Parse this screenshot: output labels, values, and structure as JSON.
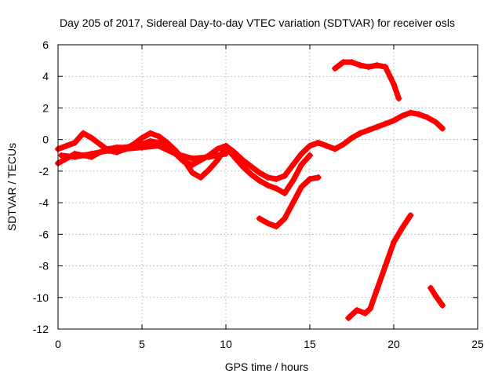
{
  "chart_data": {
    "type": "scatter",
    "title": "Day 205 of 2017, Sidereal Day-to-day VTEC variation (SDTVAR) for receiver osls",
    "xlabel": "GPS time / hours",
    "ylabel": "SDTVAR / TECUs",
    "xlim": [
      0,
      25
    ],
    "ylim": [
      -12,
      6
    ],
    "xticks": [
      "0",
      "5",
      "10",
      "15",
      "20",
      "25"
    ],
    "yticks": [
      "6",
      "4",
      "2",
      "0",
      "-2",
      "-4",
      "-6",
      "-8",
      "-10",
      "-12"
    ],
    "grid": true,
    "legend": "none",
    "marker": "plus",
    "color": "#ff0000",
    "series": [
      {
        "x": [
          0,
          0.5,
          1.0,
          1.5,
          2.0,
          2.5,
          3.0,
          3.5,
          4.0,
          4.5,
          5.0,
          5.5,
          6.0,
          6.5,
          7.0,
          7.5,
          8.0,
          8.5,
          9.0,
          9.5,
          10.0,
          10.5,
          11.0,
          11.5,
          12.0,
          12.5,
          13.0,
          13.5,
          14.0,
          14.5,
          15.0,
          15.5,
          16.0,
          16.5,
          17.0,
          17.5,
          18.0,
          18.5,
          19.0,
          19.5,
          20.0,
          20.5,
          21.0,
          21.5,
          22.0,
          22.5,
          22.9
        ],
        "y": [
          -1.5,
          -1.2,
          -0.9,
          -1.0,
          -1.1,
          -0.8,
          -0.6,
          -0.5,
          -0.5,
          -0.4,
          -0.3,
          -0.1,
          -0.2,
          -0.5,
          -0.9,
          -1.4,
          -1.6,
          -1.3,
          -1.0,
          -0.6,
          -0.4,
          -0.8,
          -1.3,
          -1.7,
          -2.1,
          -2.4,
          -2.5,
          -2.3,
          -1.6,
          -0.9,
          -0.4,
          -0.2,
          -0.4,
          -0.6,
          -0.3,
          0.1,
          0.4,
          0.6,
          0.8,
          1.0,
          1.2,
          1.5,
          1.7,
          1.6,
          1.4,
          1.1,
          0.7
        ]
      },
      {
        "x": [
          0,
          0.5,
          1.0,
          1.5,
          2.0,
          2.5,
          3.0,
          3.5,
          4.0,
          4.5,
          5.0,
          5.5,
          6.0,
          6.5,
          7.0,
          7.5,
          8.0,
          8.5,
          9.0,
          9.5,
          10.0,
          10.5,
          11.0,
          11.5,
          12.0,
          12.5,
          13.0,
          13.5,
          14.0,
          14.5,
          15.0
        ],
        "y": [
          -0.6,
          -0.4,
          -0.2,
          0.4,
          0.1,
          -0.3,
          -0.7,
          -0.8,
          -0.6,
          -0.3,
          0.1,
          0.4,
          0.2,
          -0.2,
          -0.7,
          -1.3,
          -2.1,
          -2.4,
          -1.9,
          -1.3,
          -0.5,
          -1.1,
          -1.7,
          -2.2,
          -2.6,
          -2.9,
          -3.1,
          -3.4,
          -2.6,
          -1.6,
          -1.0
        ]
      },
      {
        "x": [
          0.2,
          1.0,
          2.0,
          3.0,
          4.0,
          5.0,
          6.0,
          7.0,
          8.0,
          9.0,
          10.0
        ],
        "y": [
          -1.0,
          -1.1,
          -0.9,
          -0.7,
          -0.6,
          -0.5,
          -0.4,
          -0.9,
          -1.2,
          -1.1,
          -0.9
        ]
      },
      {
        "x": [
          12.0,
          12.5,
          13.0,
          13.5,
          14.0,
          14.5,
          15.0,
          15.5
        ],
        "y": [
          -5.0,
          -5.3,
          -5.5,
          -5.0,
          -4.0,
          -3.0,
          -2.5,
          -2.4
        ]
      },
      {
        "x": [
          16.5,
          17.0,
          17.5,
          18.0,
          18.5,
          19.0,
          19.5,
          20.0,
          20.3
        ],
        "y": [
          4.5,
          4.9,
          4.9,
          4.7,
          4.6,
          4.7,
          4.6,
          3.5,
          2.6
        ]
      },
      {
        "x": [
          17.3,
          17.8,
          18.3,
          18.6,
          19.0,
          19.5,
          20.0,
          20.5,
          21.0
        ],
        "y": [
          -11.3,
          -10.8,
          -11.0,
          -10.7,
          -9.5,
          -8.0,
          -6.5,
          -5.6,
          -4.8
        ]
      },
      {
        "x": [
          22.2,
          22.5,
          22.9
        ],
        "y": [
          -9.4,
          -9.9,
          -10.5
        ]
      }
    ]
  }
}
